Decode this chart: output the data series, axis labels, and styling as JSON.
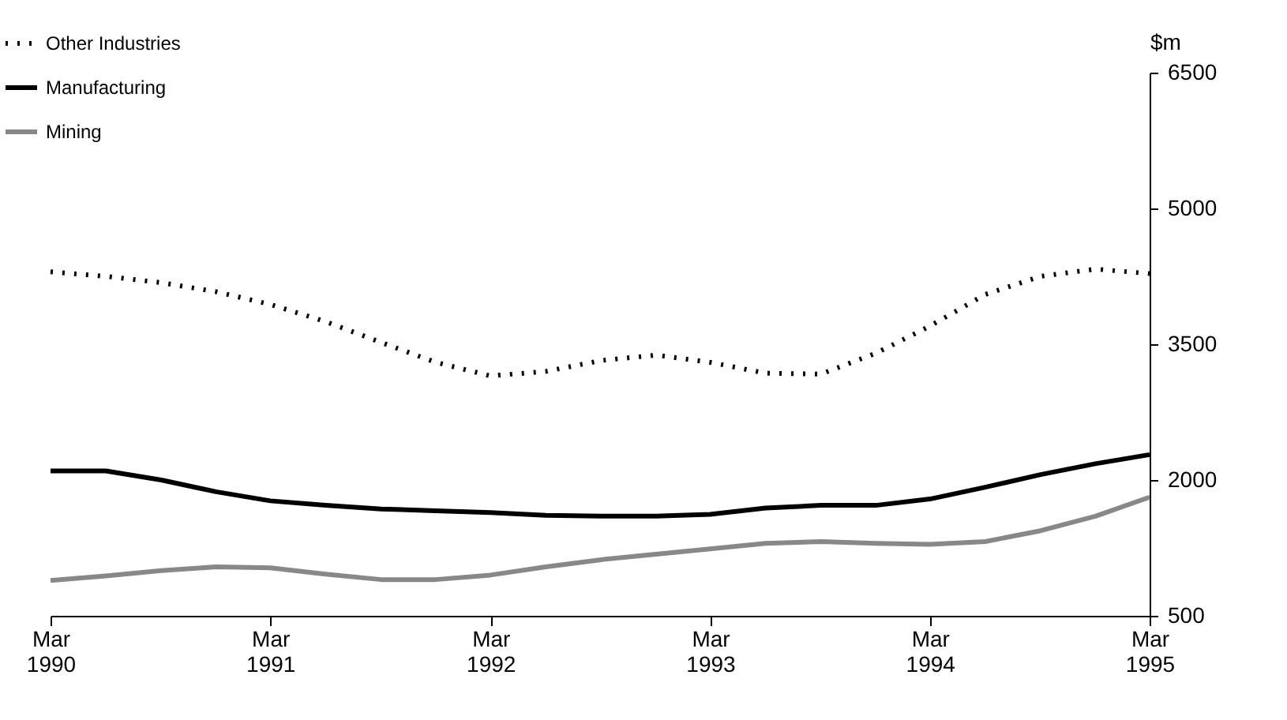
{
  "chart_data": {
    "type": "line",
    "ylabel": "$m",
    "x": [
      "1990-03",
      "1990-06",
      "1990-09",
      "1990-12",
      "1991-03",
      "1991-06",
      "1991-09",
      "1991-12",
      "1992-03",
      "1992-06",
      "1992-09",
      "1992-12",
      "1993-03",
      "1993-06",
      "1993-09",
      "1993-12",
      "1994-03",
      "1994-06",
      "1994-09",
      "1994-12",
      "1995-03"
    ],
    "xlim": [
      "1990-03",
      "1995-03"
    ],
    "xticks": [
      {
        "value": "1990-03",
        "label": "Mar 1990"
      },
      {
        "value": "1991-03",
        "label": "Mar 1991"
      },
      {
        "value": "1992-03",
        "label": "Mar 1992"
      },
      {
        "value": "1993-03",
        "label": "Mar 1993"
      },
      {
        "value": "1994-03",
        "label": "Mar 1994"
      },
      {
        "value": "1995-03",
        "label": "Mar 1995"
      }
    ],
    "ylim": [
      500,
      6500
    ],
    "yticks": [
      500,
      2000,
      3500,
      5000,
      6500
    ],
    "series": [
      {
        "name": "Other Industries",
        "color": "#000000",
        "line_style": "dotted",
        "values": [
          4300,
          4250,
          4180,
          4080,
          3940,
          3750,
          3520,
          3300,
          3150,
          3200,
          3320,
          3380,
          3300,
          3180,
          3170,
          3400,
          3700,
          4050,
          4250,
          4330,
          4280
        ]
      },
      {
        "name": "Manufacturing",
        "color": "#000000",
        "line_style": "solid",
        "values": [
          2100,
          2100,
          2000,
          1870,
          1770,
          1720,
          1680,
          1660,
          1640,
          1610,
          1600,
          1600,
          1620,
          1690,
          1720,
          1720,
          1790,
          1920,
          2060,
          2180,
          2280
        ]
      },
      {
        "name": "Mining",
        "color": "#888888",
        "line_style": "solid",
        "values": [
          890,
          940,
          1000,
          1040,
          1030,
          960,
          900,
          900,
          950,
          1040,
          1120,
          1180,
          1240,
          1300,
          1320,
          1300,
          1290,
          1320,
          1440,
          1600,
          1810
        ]
      }
    ],
    "legend": "top left",
    "grid": false
  }
}
